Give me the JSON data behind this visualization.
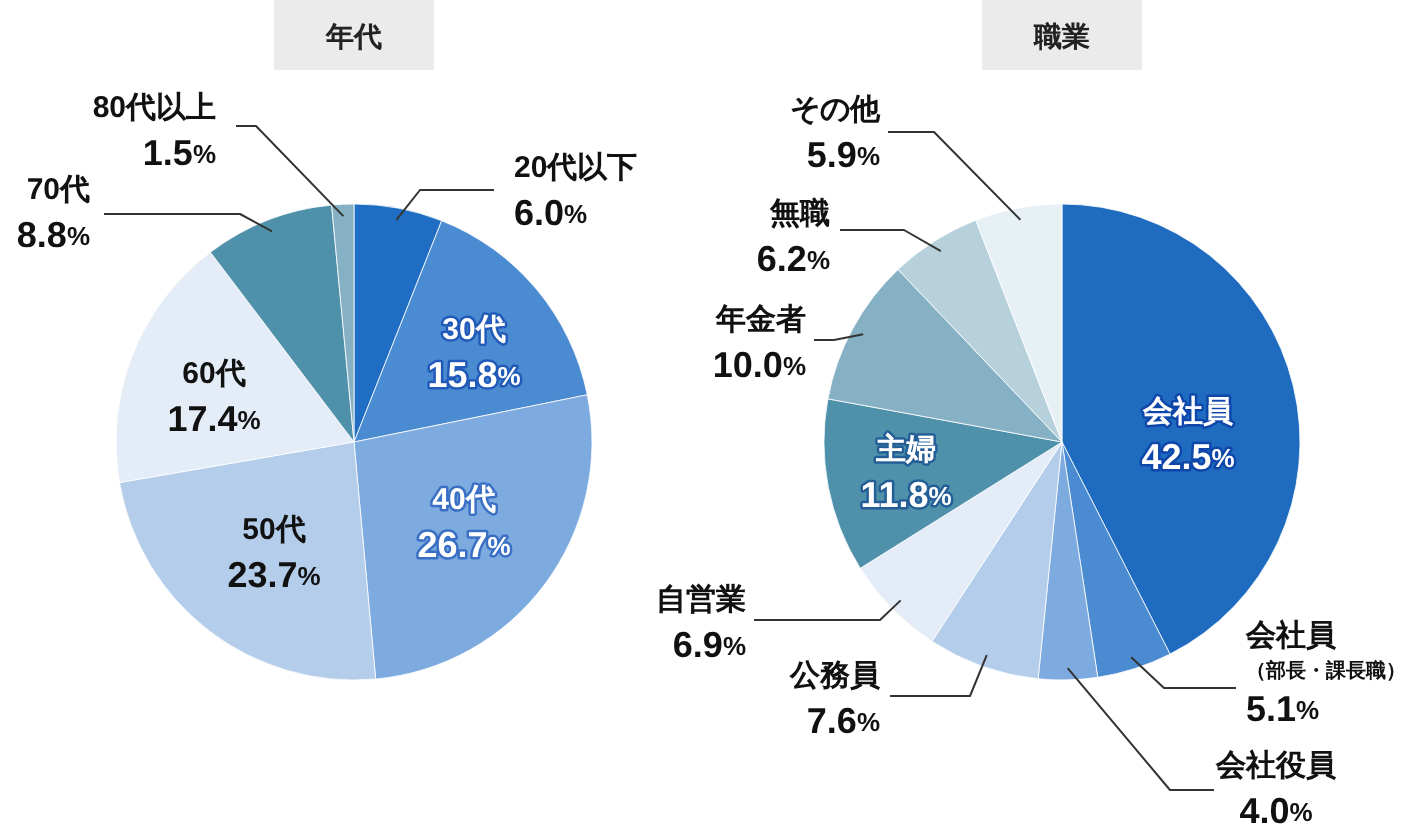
{
  "chart_data": [
    {
      "type": "pie",
      "title": "年代",
      "categories": [
        "20代以下",
        "30代",
        "40代",
        "50代",
        "60代",
        "70代",
        "80代以上"
      ],
      "values": [
        6.0,
        15.8,
        26.7,
        23.7,
        17.4,
        8.8,
        1.5
      ],
      "colors": [
        "#1f6ec4",
        "#4a8bd1",
        "#7eabdf",
        "#b3cdea",
        "#e4edf7",
        "#4f91aa",
        "#86b1c4"
      ],
      "value_labels": [
        "6.0%",
        "15.8%",
        "26.7%",
        "23.7%",
        "17.4%",
        "8.8%",
        "1.5%"
      ]
    },
    {
      "type": "pie",
      "title": "職業",
      "categories": [
        "会社員",
        "会社員（部長・課長職）",
        "会社役員",
        "公務員",
        "自営業",
        "主婦",
        "年金者",
        "無職",
        "その他"
      ],
      "values": [
        42.5,
        5.1,
        4.0,
        7.6,
        6.9,
        11.8,
        10.0,
        6.2,
        5.9
      ],
      "colors": [
        "#1f6bc0",
        "#4a8bd1",
        "#7eabdf",
        "#b3cdea",
        "#e4edf7",
        "#4f91aa",
        "#86b1c4",
        "#b6d1dc",
        "#e7f0f4"
      ],
      "value_labels": [
        "42.5%",
        "5.1%",
        "4.0%",
        "7.6%",
        "6.9%",
        "11.8%",
        "10.0%",
        "6.2%",
        "5.9%"
      ]
    }
  ]
}
